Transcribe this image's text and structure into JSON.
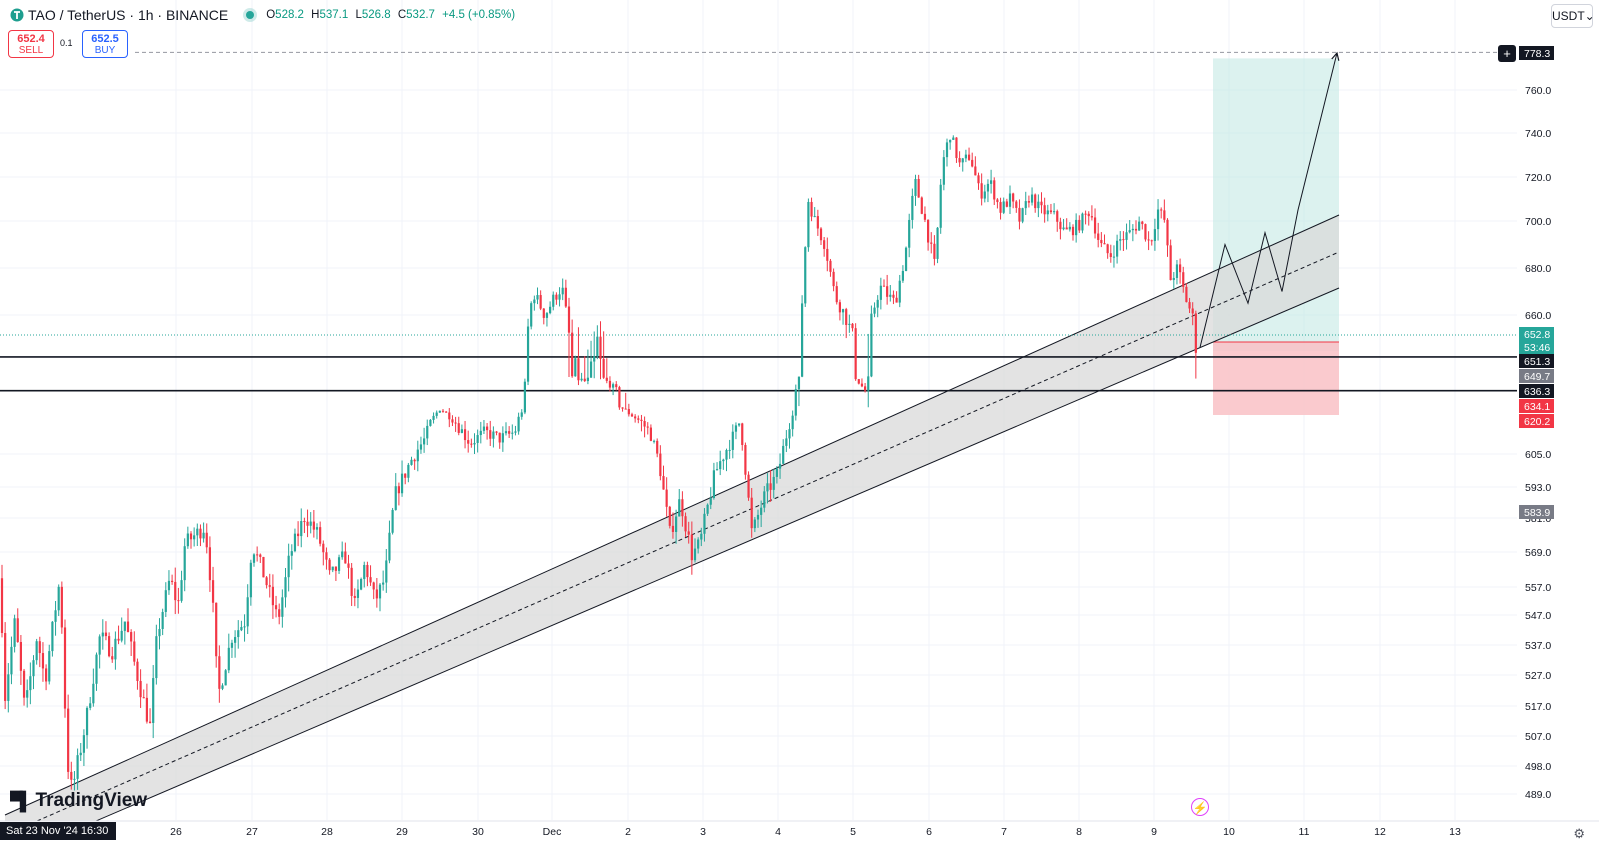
{
  "header": {
    "symbol": "TAO / TetherUS · 1h · BINANCE",
    "o_label": "O",
    "o": "528.2",
    "h_label": "H",
    "h": "537.1",
    "l_label": "L",
    "l": "526.8",
    "c_label": "C",
    "c": "532.7",
    "change": "+4.5 (+0.85%)"
  },
  "trade": {
    "sell_price": "652.4",
    "sell_label": "SELL",
    "spread": "0.1",
    "buy_price": "652.5",
    "buy_label": "BUY"
  },
  "currency": "USDT",
  "currency_arrow": "⌄",
  "brand": "TradingView",
  "date_stamp": "Sat 23 Nov '24   16:30",
  "colors": {
    "up": "#26a69a",
    "down": "#f23645",
    "profit_zone": "#bfe8e2",
    "loss_zone": "#f9c1c5",
    "channel": "#d9d9d9",
    "text": "#131722"
  },
  "chart_data": {
    "type": "candlestick",
    "title": "",
    "xlabel": "",
    "ylabel": "",
    "x_ticks": [
      "26",
      "27",
      "28",
      "29",
      "30",
      "Dec",
      "2",
      "3",
      "4",
      "5",
      "6",
      "7",
      "8",
      "9",
      "10",
      "11",
      "12",
      "13"
    ],
    "y_ticks": [
      "760.0",
      "740.0",
      "720.0",
      "700.0",
      "680.0",
      "660.0",
      "605.0",
      "593.0",
      "581.0",
      "569.0",
      "557.0",
      "547.0",
      "537.0",
      "527.0",
      "517.0",
      "507.0",
      "498.0",
      "489.0"
    ],
    "price_labels": [
      {
        "value": "778.3",
        "kind": "target"
      },
      {
        "value": "652.8",
        "kind": "last"
      },
      {
        "value": "53:46",
        "kind": "countdown"
      },
      {
        "value": "651.3",
        "kind": "level"
      },
      {
        "value": "649.7",
        "kind": "level-grey"
      },
      {
        "value": "636.3",
        "kind": "level"
      },
      {
        "value": "634.1",
        "kind": "stop"
      },
      {
        "value": "620.2",
        "kind": "stop"
      },
      {
        "value": "583.9",
        "kind": "level-grey"
      }
    ],
    "horizontal_levels": [
      "651.3",
      "636.3"
    ],
    "ohlc_path": [
      [
        0,
        560
      ],
      [
        5,
        520
      ],
      [
        15,
        545
      ],
      [
        25,
        515
      ],
      [
        37,
        540
      ],
      [
        45,
        525
      ],
      [
        60,
        560
      ],
      [
        67,
        500
      ],
      [
        72,
        490
      ],
      [
        85,
        510
      ],
      [
        100,
        540
      ],
      [
        112,
        535
      ],
      [
        125,
        545
      ],
      [
        135,
        530
      ],
      [
        150,
        510
      ],
      [
        157,
        540
      ],
      [
        170,
        560
      ],
      [
        178,
        550
      ],
      [
        185,
        572
      ],
      [
        205,
        578
      ],
      [
        212,
        555
      ],
      [
        218,
        520
      ],
      [
        232,
        540
      ],
      [
        245,
        545
      ],
      [
        252,
        572
      ],
      [
        265,
        560
      ],
      [
        278,
        545
      ],
      [
        290,
        568
      ],
      [
        305,
        582
      ],
      [
        318,
        575
      ],
      [
        330,
        560
      ],
      [
        345,
        568
      ],
      [
        355,
        550
      ],
      [
        365,
        565
      ],
      [
        375,
        552
      ],
      [
        385,
        560
      ],
      [
        395,
        590
      ],
      [
        410,
        602
      ],
      [
        425,
        612
      ],
      [
        440,
        632
      ],
      [
        455,
        620
      ],
      [
        470,
        610
      ],
      [
        485,
        615
      ],
      [
        500,
        612
      ],
      [
        515,
        615
      ],
      [
        522,
        630
      ],
      [
        528,
        655
      ],
      [
        533,
        670
      ],
      [
        545,
        660
      ],
      [
        555,
        668
      ],
      [
        562,
        672
      ],
      [
        570,
        650
      ],
      [
        585,
        645
      ],
      [
        598,
        652
      ],
      [
        610,
        642
      ],
      [
        625,
        630
      ],
      [
        640,
        620
      ],
      [
        650,
        615
      ],
      [
        660,
        600
      ],
      [
        670,
        575
      ],
      [
        680,
        588
      ],
      [
        692,
        568
      ],
      [
        700,
        572
      ],
      [
        715,
        598
      ],
      [
        730,
        610
      ],
      [
        740,
        620
      ],
      [
        752,
        575
      ],
      [
        765,
        590
      ],
      [
        778,
        598
      ],
      [
        790,
        620
      ],
      [
        800,
        650
      ],
      [
        808,
        710
      ],
      [
        815,
        700
      ],
      [
        825,
        690
      ],
      [
        835,
        668
      ],
      [
        845,
        660
      ],
      [
        855,
        650
      ],
      [
        865,
        636
      ],
      [
        872,
        660
      ],
      [
        880,
        672
      ],
      [
        895,
        665
      ],
      [
        905,
        685
      ],
      [
        915,
        718
      ],
      [
        925,
        700
      ],
      [
        935,
        680
      ],
      [
        942,
        725
      ],
      [
        950,
        740
      ],
      [
        960,
        725
      ],
      [
        970,
        730
      ],
      [
        980,
        712
      ],
      [
        990,
        718
      ],
      [
        1000,
        705
      ],
      [
        1010,
        710
      ],
      [
        1020,
        700
      ],
      [
        1030,
        712
      ],
      [
        1040,
        705
      ],
      [
        1055,
        702
      ],
      [
        1065,
        695
      ],
      [
        1078,
        698
      ],
      [
        1090,
        705
      ],
      [
        1100,
        690
      ],
      [
        1110,
        685
      ],
      [
        1120,
        692
      ],
      [
        1130,
        695
      ],
      [
        1140,
        700
      ],
      [
        1150,
        690
      ],
      [
        1158,
        705
      ],
      [
        1165,
        700
      ],
      [
        1170,
        675
      ],
      [
        1178,
        680
      ],
      [
        1185,
        668
      ],
      [
        1192,
        660
      ],
      [
        1197,
        652
      ]
    ],
    "projection_path": [
      [
        1200,
        652
      ],
      [
        1225,
        690
      ],
      [
        1248,
        665
      ],
      [
        1265,
        695
      ],
      [
        1282,
        670
      ],
      [
        1298,
        705
      ],
      [
        1337,
        778
      ]
    ],
    "channel": {
      "upper": [
        [
          5,
          815
        ],
        [
          1339,
          215
        ]
      ],
      "middle": [
        [
          5,
          835
        ],
        [
          1339,
          252
        ]
      ],
      "lower": [
        [
          5,
          860
        ],
        [
          1339,
          288
        ]
      ]
    },
    "position": {
      "x_start": 1213,
      "x_end": 1339,
      "entry": "651.3",
      "target": "778.3",
      "stop": "620.2"
    },
    "legend": "none"
  }
}
